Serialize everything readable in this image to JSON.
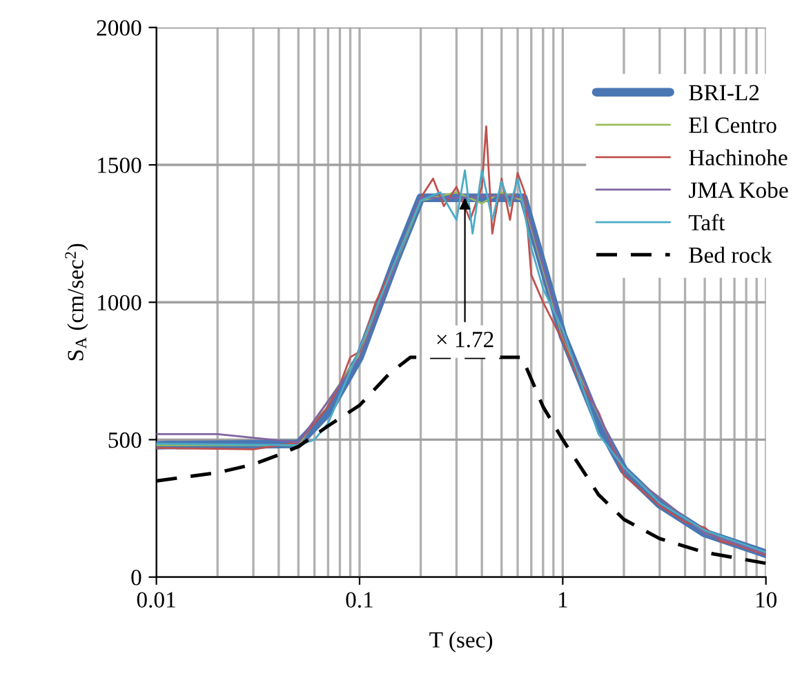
{
  "chart_data": {
    "type": "line",
    "xlabel": "T (sec)",
    "ylabel": "S$_{A}$ (cm/sec$^{2}$)",
    "log": "x",
    "xlim": [
      0.01,
      10
    ],
    "xticks": [
      0.01,
      0.1,
      1,
      10
    ],
    "ylim": [
      0,
      2000
    ],
    "yticks": [
      0,
      500,
      1000,
      1500,
      2000
    ],
    "grid": true,
    "legend": "right",
    "annotations": [
      {
        "text": "× 1.72",
        "x": 0.33,
        "y": 1380
      }
    ],
    "series": [
      {
        "name": "BRI-L2",
        "color": "#4a76b4",
        "line_style": "solid",
        "x": [
          0.01,
          0.05,
          0.07,
          0.1,
          0.15,
          0.2,
          0.64,
          1,
          1.5,
          2,
          3,
          5,
          10
        ],
        "values": [
          480,
          485,
          600,
          800,
          1150,
          1380,
          1380,
          880,
          560,
          390,
          265,
          160,
          85
        ]
      },
      {
        "name": "El Centro",
        "color": "#9bbb59",
        "line_style": "solid",
        "x": [
          0.01,
          0.05,
          0.1,
          0.2,
          0.3,
          0.4,
          0.5,
          0.64,
          1,
          2,
          5,
          10
        ],
        "values": [
          480,
          480,
          810,
          1370,
          1400,
          1360,
          1400,
          1370,
          870,
          390,
          160,
          85
        ]
      },
      {
        "name": "Hachinohe",
        "color": "#c0504d",
        "line_style": "solid",
        "x": [
          0.01,
          0.03,
          0.05,
          0.07,
          0.08,
          0.09,
          0.1,
          0.12,
          0.15,
          0.2,
          0.23,
          0.26,
          0.3,
          0.35,
          0.4,
          0.42,
          0.45,
          0.5,
          0.55,
          0.6,
          0.65,
          0.7,
          0.8,
          1,
          1.2,
          1.5,
          2,
          3,
          4,
          5,
          6,
          7,
          10
        ],
        "values": [
          470,
          465,
          490,
          620,
          700,
          800,
          820,
          1000,
          1150,
          1380,
          1450,
          1350,
          1420,
          1300,
          1420,
          1640,
          1250,
          1450,
          1300,
          1470,
          1400,
          1100,
          1000,
          860,
          720,
          600,
          370,
          260,
          200,
          180,
          130,
          120,
          80
        ]
      },
      {
        "name": "JMA Kobe",
        "color": "#8064a2",
        "line_style": "solid",
        "x": [
          0.01,
          0.02,
          0.05,
          0.1,
          0.2,
          0.3,
          0.5,
          0.64,
          1,
          2,
          5,
          10
        ],
        "values": [
          520,
          520,
          490,
          800,
          1380,
          1380,
          1390,
          1380,
          880,
          390,
          160,
          85
        ]
      },
      {
        "name": "Taft",
        "color": "#4bacc6",
        "line_style": "solid",
        "x": [
          0.01,
          0.05,
          0.06,
          0.07,
          0.1,
          0.15,
          0.2,
          0.25,
          0.3,
          0.33,
          0.36,
          0.4,
          0.45,
          0.5,
          0.55,
          0.6,
          0.7,
          0.8,
          1,
          1.5,
          2,
          3,
          5,
          10
        ],
        "values": [
          485,
          480,
          500,
          560,
          830,
          1150,
          1370,
          1400,
          1300,
          1480,
          1250,
          1480,
          1300,
          1440,
          1350,
          1450,
          1200,
          1050,
          900,
          520,
          400,
          270,
          170,
          90
        ]
      },
      {
        "name": "Bed rock",
        "color": "#000000",
        "line_style": "dashed",
        "x": [
          0.01,
          0.02,
          0.03,
          0.04,
          0.05,
          0.07,
          0.1,
          0.14,
          0.178,
          0.63,
          0.8,
          1,
          1.5,
          2,
          3,
          5,
          10
        ],
        "values": [
          350,
          380,
          410,
          445,
          475,
          550,
          625,
          740,
          800,
          800,
          620,
          500,
          300,
          210,
          140,
          90,
          50
        ]
      }
    ]
  }
}
